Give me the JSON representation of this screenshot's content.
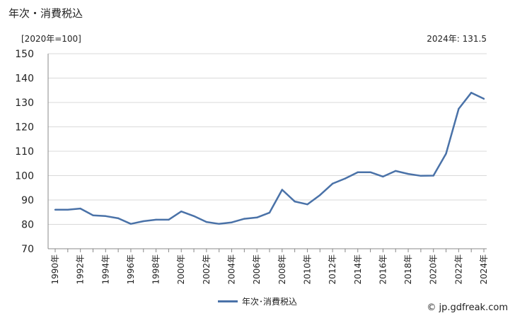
{
  "title": "年次・消費税込",
  "unit_label": "[2020年=100]",
  "latest_label": "2024年: 131.5",
  "legend_label": "年次･消費税込",
  "credit": "© jp.gdfreak.com",
  "colors": {
    "series": "#4a72a8",
    "grid": "#d9d9d9",
    "axis": "#888888"
  },
  "chart_data": {
    "type": "line",
    "title": "年次・消費税込",
    "ylabel": "[2020年=100]",
    "ylim": [
      70,
      150
    ],
    "yticks": [
      70,
      80,
      90,
      100,
      110,
      120,
      130,
      140,
      150
    ],
    "xlabels": [
      "1990年",
      "1992年",
      "1994年",
      "1996年",
      "1998年",
      "2000年",
      "2002年",
      "2004年",
      "2006年",
      "2008年",
      "2010年",
      "2012年",
      "2014年",
      "2016年",
      "2018年",
      "2020年",
      "2022年",
      "2024年"
    ],
    "x": [
      1990,
      1991,
      1992,
      1993,
      1994,
      1995,
      1996,
      1997,
      1998,
      1999,
      2000,
      2001,
      2002,
      2003,
      2004,
      2005,
      2006,
      2007,
      2008,
      2009,
      2010,
      2011,
      2012,
      2013,
      2014,
      2015,
      2016,
      2017,
      2018,
      2019,
      2020,
      2021,
      2022,
      2023,
      2024
    ],
    "series": [
      {
        "name": "年次･消費税込",
        "values": [
          86.0,
          86.0,
          86.5,
          83.7,
          83.4,
          82.5,
          80.2,
          81.3,
          81.9,
          81.9,
          85.3,
          83.4,
          81.0,
          80.2,
          80.8,
          82.3,
          82.8,
          84.8,
          94.2,
          89.4,
          88.2,
          92.0,
          96.7,
          98.8,
          101.4,
          101.4,
          99.6,
          101.9,
          100.7,
          99.9,
          100.0,
          109.0,
          127.4,
          134.0,
          131.5
        ]
      }
    ],
    "grid": true,
    "legend": "bottom"
  }
}
